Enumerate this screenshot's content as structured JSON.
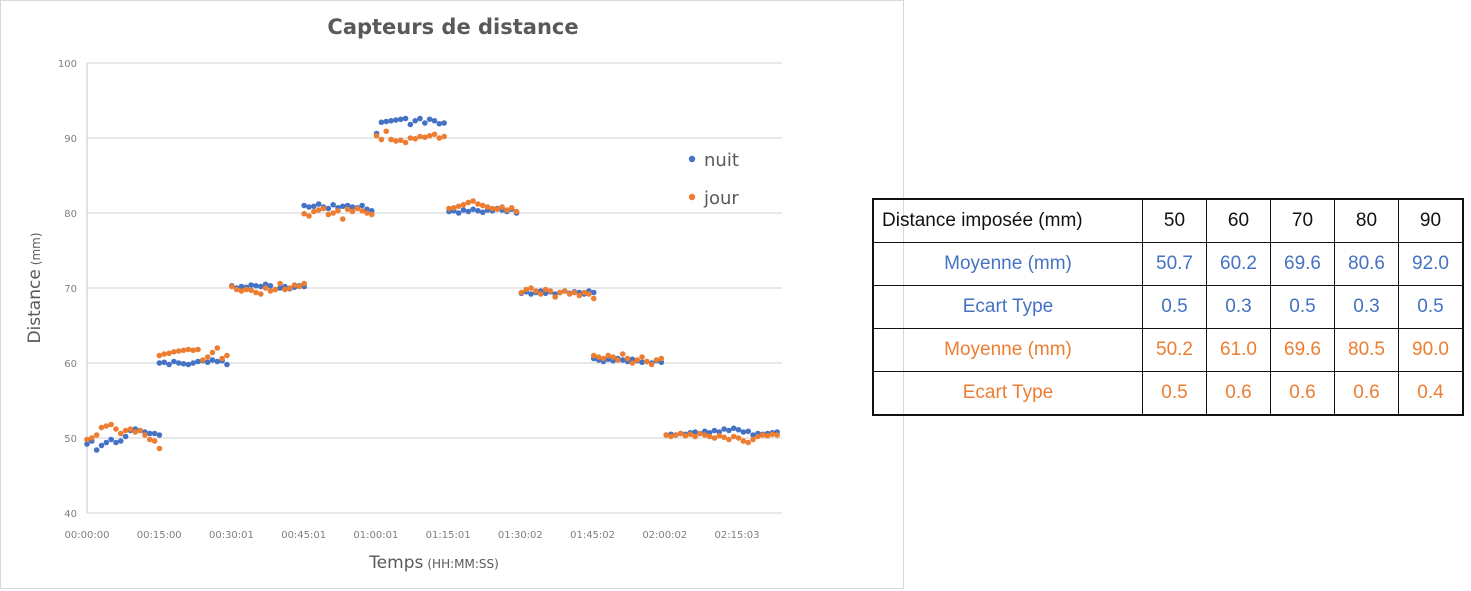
{
  "chart": {
    "title": "Capteurs de distance",
    "ylabel_main": "Distance",
    "ylabel_unit": "(mm)",
    "xlabel_main": "Temps",
    "xlabel_unit": "(HH:MM:SS)",
    "legend": [
      {
        "label": "nuit",
        "color": "#4472c4"
      },
      {
        "label": "jour",
        "color": "#ed7d31"
      }
    ]
  },
  "table": {
    "header_label": "Distance imposée (mm)",
    "columns": [
      "50",
      "60",
      "70",
      "80",
      "90"
    ],
    "rows": [
      {
        "label": "Moyenne (mm)",
        "series": "nuit",
        "color": "#4472c4",
        "values": [
          "50.7",
          "60.2",
          "69.6",
          "80.6",
          "92.0"
        ]
      },
      {
        "label": "Ecart Type",
        "series": "nuit",
        "color": "#4472c4",
        "values": [
          "0.5",
          "0.3",
          "0.5",
          "0.3",
          "0.5"
        ]
      },
      {
        "label": "Moyenne (mm)",
        "series": "jour",
        "color": "#ed7d31",
        "values": [
          "50.2",
          "61.0",
          "69.6",
          "80.5",
          "90.0"
        ]
      },
      {
        "label": "Ecart Type",
        "series": "jour",
        "color": "#ed7d31",
        "values": [
          "0.5",
          "0.6",
          "0.6",
          "0.6",
          "0.4"
        ]
      }
    ]
  },
  "chart_data": {
    "type": "scatter",
    "title": "Capteurs de distance",
    "xlabel": "Temps (HH:MM:SS)",
    "ylabel": "Distance (mm)",
    "ylim": [
      40,
      100
    ],
    "yticks": [
      40,
      50,
      60,
      70,
      80,
      90,
      100
    ],
    "xtick_labels": [
      "00:00:00",
      "00:15:00",
      "00:30:01",
      "00:45:01",
      "01:00:01",
      "01:15:01",
      "01:30:02",
      "01:45:02",
      "02:00:02",
      "02:15:03"
    ],
    "x_unit": "minutes",
    "xlim": [
      0,
      144
    ],
    "grid": "horizontal",
    "legend_position": "right",
    "segments": [
      {
        "imposed": 50,
        "x_range": [
          0,
          15
        ]
      },
      {
        "imposed": 60,
        "x_range": [
          15,
          30
        ]
      },
      {
        "imposed": 70,
        "x_range": [
          30,
          45
        ]
      },
      {
        "imposed": 80,
        "x_range": [
          45,
          60
        ]
      },
      {
        "imposed": 90,
        "x_range": [
          60,
          75
        ]
      },
      {
        "imposed": 80,
        "x_range": [
          75,
          90
        ]
      },
      {
        "imposed": 70,
        "x_range": [
          90,
          105
        ]
      },
      {
        "imposed": 60,
        "x_range": [
          105,
          120
        ]
      },
      {
        "imposed": 50,
        "x_range": [
          120,
          144
        ]
      }
    ],
    "series": [
      {
        "name": "nuit",
        "color": "#4472c4",
        "x": [
          0,
          1,
          2,
          3,
          4,
          5,
          6,
          7,
          8,
          9,
          10,
          11,
          12,
          13,
          14,
          15,
          15,
          16,
          17,
          18,
          19,
          20,
          21,
          22,
          23,
          24,
          25,
          26,
          27,
          28,
          29,
          30,
          31,
          32,
          33,
          34,
          35,
          36,
          37,
          38,
          39,
          40,
          41,
          42,
          43,
          44,
          45,
          45,
          46,
          47,
          48,
          49,
          50,
          51,
          52,
          53,
          54,
          55,
          56,
          57,
          58,
          59,
          60,
          61,
          62,
          63,
          64,
          65,
          66,
          67,
          68,
          69,
          70,
          71,
          72,
          73,
          74,
          75,
          76,
          77,
          78,
          79,
          80,
          81,
          82,
          83,
          84,
          85,
          86,
          87,
          88,
          89,
          90,
          91,
          92,
          93,
          94,
          95,
          96,
          97,
          98,
          99,
          100,
          101,
          102,
          103,
          104,
          105,
          105,
          106,
          107,
          108,
          109,
          110,
          111,
          112,
          113,
          114,
          115,
          116,
          117,
          118,
          119,
          120,
          121,
          122,
          123,
          124,
          125,
          126,
          127,
          128,
          129,
          130,
          131,
          132,
          133,
          134,
          135,
          136,
          137,
          138,
          139,
          140,
          141,
          142,
          143
        ],
        "y": [
          49.2,
          49.6,
          48.4,
          49.0,
          49.4,
          49.8,
          49.4,
          49.6,
          50.2,
          51.0,
          51.2,
          51.0,
          50.8,
          50.6,
          50.6,
          50.4,
          60.0,
          60.1,
          59.8,
          60.2,
          60.0,
          59.9,
          59.8,
          60.0,
          60.2,
          60.3,
          60.1,
          60.4,
          60.2,
          60.3,
          59.8,
          70.3,
          70.0,
          70.2,
          70.1,
          70.4,
          70.3,
          70.2,
          70.5,
          70.3,
          69.8,
          70.0,
          70.2,
          69.9,
          70.1,
          70.3,
          70.2,
          81.0,
          80.8,
          80.9,
          81.2,
          80.8,
          80.6,
          81.1,
          80.7,
          80.9,
          81.0,
          80.8,
          80.7,
          81.0,
          80.5,
          80.3,
          90.6,
          92.1,
          92.2,
          92.3,
          92.4,
          92.5,
          92.6,
          91.8,
          92.3,
          92.6,
          92.0,
          92.5,
          92.3,
          91.9,
          92.0,
          80.2,
          80.3,
          80.0,
          80.4,
          80.2,
          80.5,
          80.3,
          80.1,
          80.4,
          80.3,
          80.6,
          80.4,
          80.2,
          80.5,
          80.0,
          69.3,
          69.5,
          69.2,
          69.4,
          69.6,
          69.3,
          69.5,
          69.2,
          69.4,
          69.6,
          69.3,
          69.5,
          69.4,
          69.2,
          69.6,
          69.4,
          60.6,
          60.4,
          60.2,
          60.5,
          60.3,
          60.6,
          60.4,
          60.2,
          60.5,
          60.3,
          60.1,
          60.2,
          60.0,
          60.3,
          60.1,
          50.4,
          50.5,
          50.4,
          50.6,
          50.5,
          50.7,
          50.8,
          50.6,
          50.9,
          50.7,
          51.0,
          50.8,
          51.2,
          51.0,
          51.3,
          51.1,
          50.8,
          50.9,
          50.4,
          50.6,
          50.5,
          50.6,
          50.7,
          50.8
        ]
      },
      {
        "name": "jour",
        "color": "#ed7d31",
        "x": [
          0,
          1,
          2,
          3,
          4,
          5,
          6,
          7,
          8,
          9,
          10,
          11,
          12,
          13,
          14,
          15,
          15,
          16,
          17,
          18,
          19,
          20,
          21,
          22,
          23,
          24,
          25,
          26,
          27,
          28,
          29,
          30,
          31,
          32,
          33,
          34,
          35,
          36,
          37,
          38,
          39,
          40,
          41,
          42,
          43,
          44,
          45,
          45,
          46,
          47,
          48,
          49,
          50,
          51,
          52,
          53,
          54,
          55,
          56,
          57,
          58,
          59,
          60,
          61,
          62,
          63,
          64,
          65,
          66,
          67,
          68,
          69,
          70,
          71,
          72,
          73,
          74,
          75,
          76,
          77,
          78,
          79,
          80,
          81,
          82,
          83,
          84,
          85,
          86,
          87,
          88,
          89,
          90,
          91,
          92,
          93,
          94,
          95,
          96,
          97,
          98,
          99,
          100,
          101,
          102,
          103,
          104,
          105,
          105,
          106,
          107,
          108,
          109,
          110,
          111,
          112,
          113,
          114,
          115,
          116,
          117,
          118,
          119,
          120,
          121,
          122,
          123,
          124,
          125,
          126,
          127,
          128,
          129,
          130,
          131,
          132,
          133,
          134,
          135,
          136,
          137,
          138,
          139,
          140,
          141,
          142,
          143
        ],
        "y": [
          49.8,
          50.0,
          50.4,
          51.4,
          51.6,
          51.8,
          51.2,
          50.6,
          51.0,
          51.2,
          50.8,
          51.0,
          50.4,
          49.8,
          49.6,
          48.6,
          61.0,
          61.2,
          61.3,
          61.5,
          61.6,
          61.7,
          61.8,
          61.7,
          61.8,
          60.4,
          60.8,
          61.4,
          62.0,
          60.6,
          61.0,
          70.2,
          69.8,
          69.6,
          69.8,
          69.7,
          69.4,
          69.2,
          70.0,
          69.6,
          69.8,
          70.6,
          69.8,
          70.0,
          70.4,
          70.2,
          70.6,
          79.9,
          79.6,
          80.2,
          80.4,
          80.6,
          79.8,
          80.0,
          80.3,
          79.2,
          80.5,
          80.2,
          80.6,
          80.3,
          80.0,
          79.8,
          90.3,
          89.8,
          90.9,
          89.8,
          89.6,
          89.7,
          89.4,
          90.0,
          89.9,
          90.2,
          90.1,
          90.3,
          90.5,
          90.0,
          90.2,
          80.6,
          80.7,
          80.9,
          81.1,
          81.4,
          81.6,
          81.2,
          81.0,
          80.8,
          80.6,
          80.5,
          80.8,
          80.4,
          80.7,
          80.2,
          69.4,
          69.8,
          70.0,
          69.6,
          69.2,
          69.8,
          69.6,
          68.8,
          69.4,
          69.6,
          69.2,
          69.4,
          69.0,
          69.4,
          69.2,
          68.6,
          61.0,
          60.8,
          60.6,
          61.0,
          60.8,
          60.4,
          61.2,
          60.6,
          60.0,
          60.4,
          60.8,
          60.2,
          59.8,
          60.4,
          60.6,
          50.4,
          50.2,
          50.4,
          50.6,
          50.3,
          50.5,
          50.2,
          50.6,
          50.4,
          50.2,
          50.0,
          50.3,
          50.1,
          49.8,
          50.2,
          50.0,
          49.6,
          49.4,
          49.8,
          50.2,
          50.4,
          50.3,
          50.5,
          50.4
        ]
      }
    ]
  }
}
